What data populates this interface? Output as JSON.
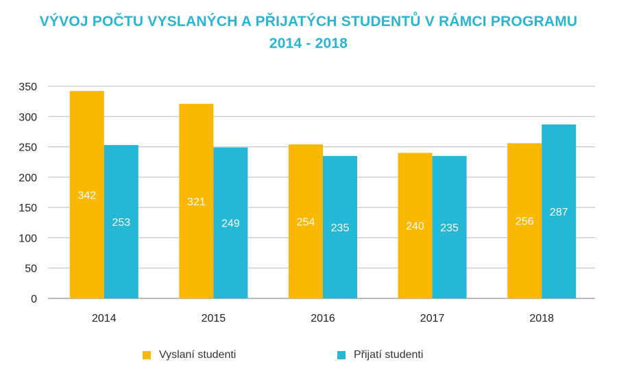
{
  "chart_data": {
    "type": "bar",
    "title": "VÝVOJ POČTU VYSLANÝCH A PŘIJATÝCH STUDENTŮ V RÁMCI PROGRAMU",
    "subtitle": "2014 - 2018",
    "categories": [
      "2014",
      "2015",
      "2016",
      "2017",
      "2018"
    ],
    "series": [
      {
        "name": "Vyslaní studenti",
        "values": [
          342,
          321,
          254,
          240,
          256
        ],
        "color": "#fbb800"
      },
      {
        "name": "Přijatí studenti",
        "values": [
          253,
          249,
          235,
          235,
          287
        ],
        "color": "#25b7d6"
      }
    ],
    "yticks": [
      "0",
      "50",
      "100",
      "150",
      "200",
      "250",
      "300",
      "350"
    ],
    "ylim": [
      0,
      350
    ],
    "grid": true,
    "legend_position": "bottom",
    "title_color": "#27b5d3"
  }
}
